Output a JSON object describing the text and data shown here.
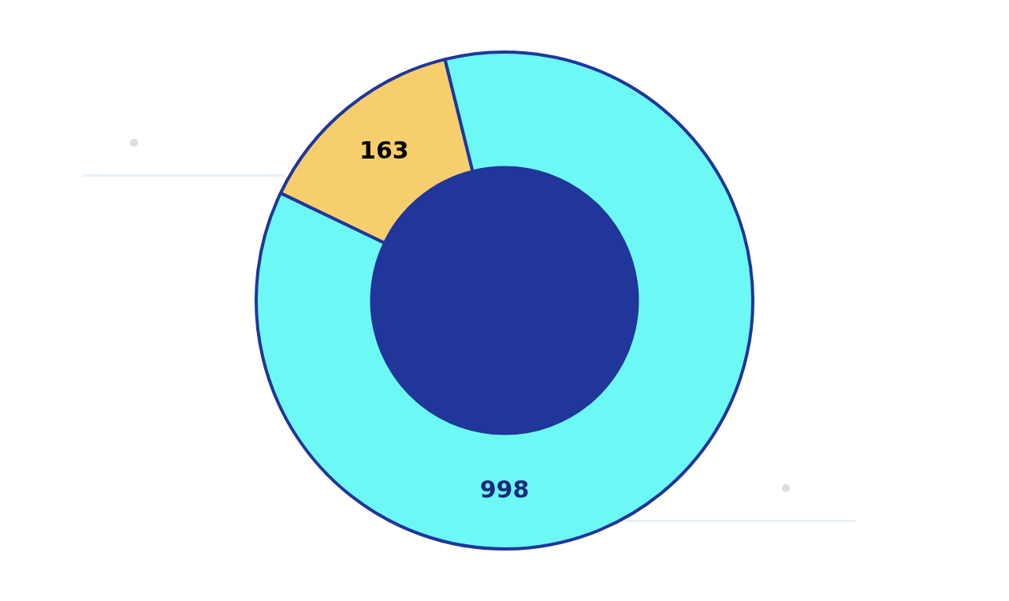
{
  "chart_data": {
    "type": "donut",
    "categories": [
      null,
      null
    ],
    "values": [
      163,
      998
    ],
    "colors": [
      "#f6ce6b",
      "#6cf8f5"
    ],
    "data_labels": true
  }
}
